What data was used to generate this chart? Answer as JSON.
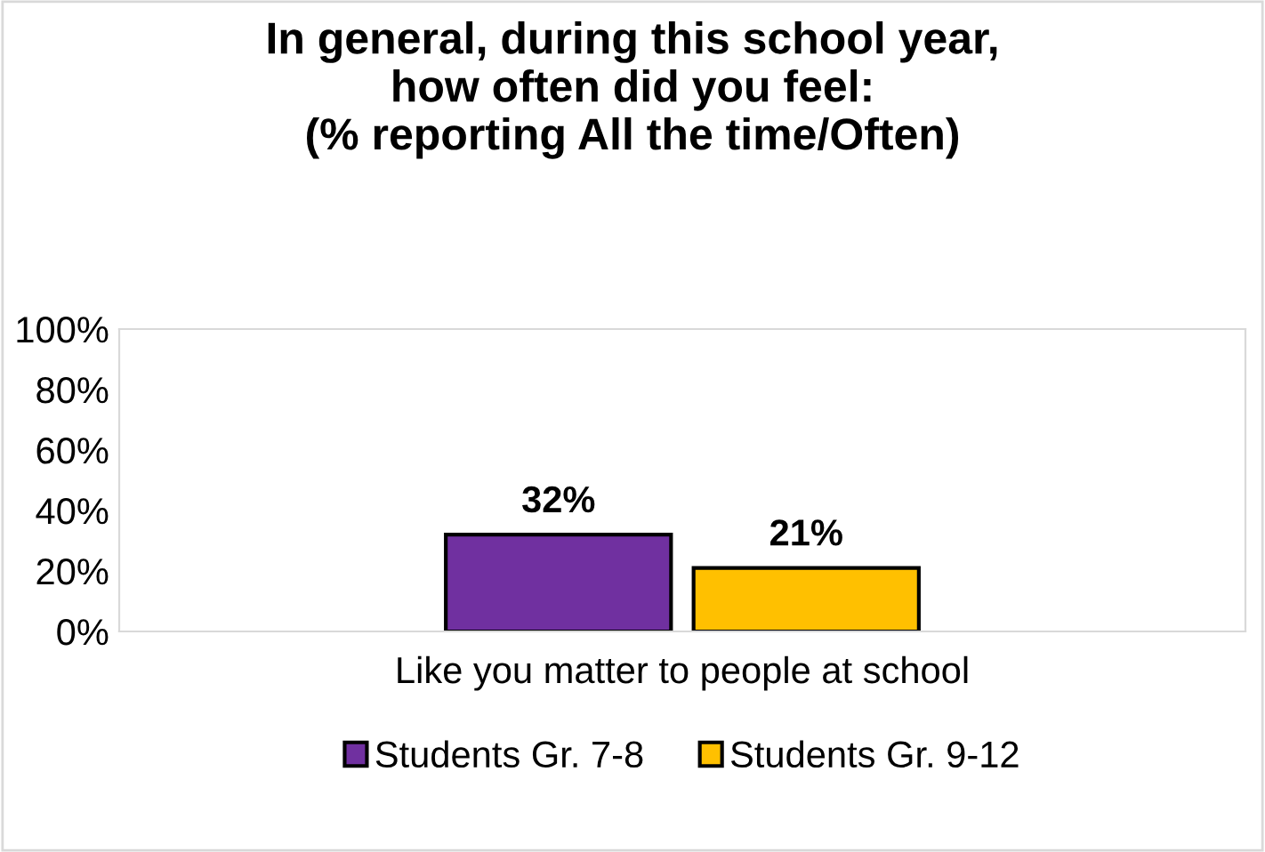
{
  "chart_data": {
    "type": "bar",
    "title": "In general, during this school year,\nhow often did you feel:\n(% reporting All the time/Often)",
    "categories": [
      "Like you matter to people at school"
    ],
    "series": [
      {
        "name": "Students Gr. 7-8",
        "color": "#7030a0",
        "values": [
          32
        ],
        "value_labels": [
          "32%"
        ]
      },
      {
        "name": "Students Gr. 9-12",
        "color": "#ffc000",
        "values": [
          21
        ],
        "value_labels": [
          "21%"
        ]
      }
    ],
    "ylim": [
      0,
      100
    ],
    "yticks": [
      {
        "value": 0,
        "label": "0%"
      },
      {
        "value": 20,
        "label": "20%"
      },
      {
        "value": 40,
        "label": "40%"
      },
      {
        "value": 60,
        "label": "60%"
      },
      {
        "value": 80,
        "label": "80%"
      },
      {
        "value": 100,
        "label": "100%"
      }
    ],
    "grid": false,
    "legend": "bottom"
  }
}
